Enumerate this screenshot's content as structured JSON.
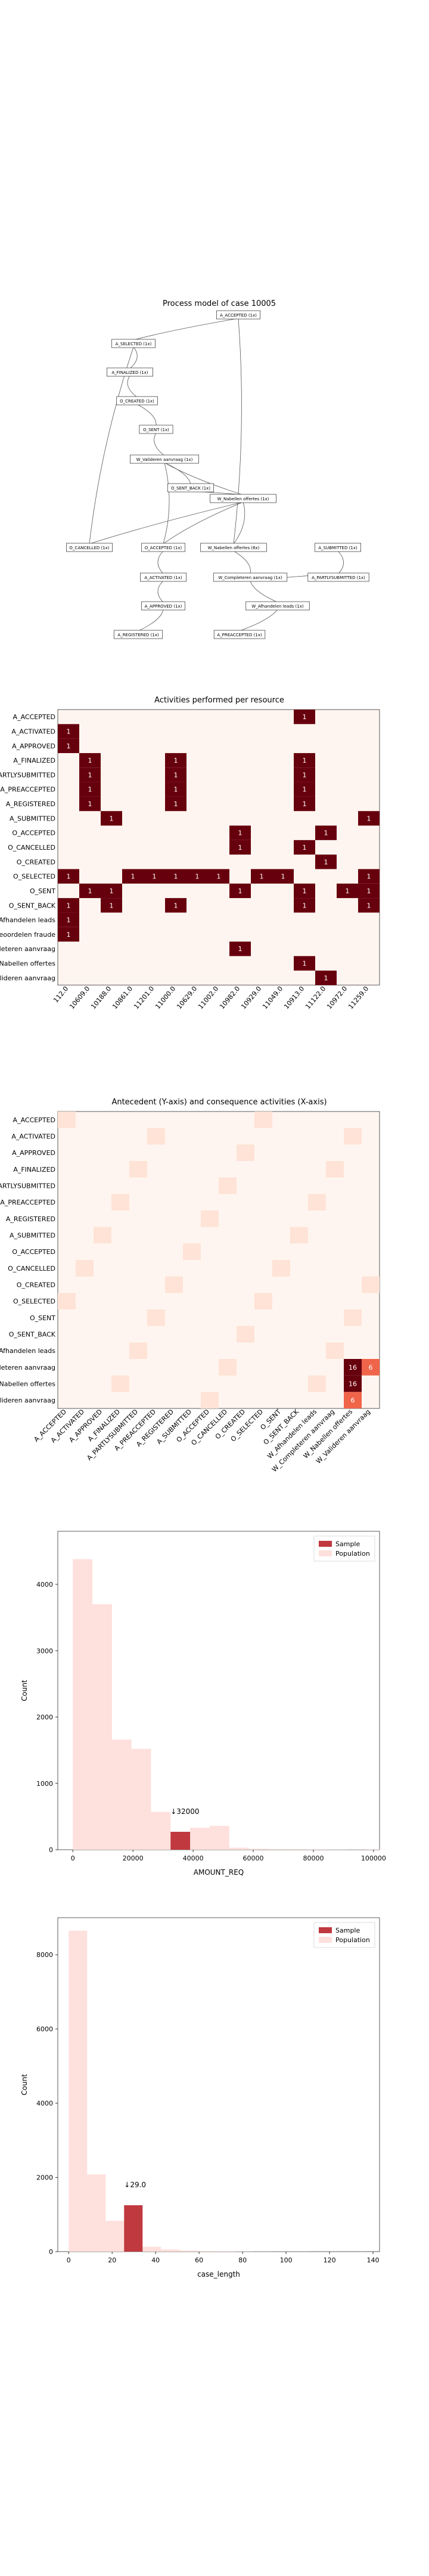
{
  "process_model": {
    "title": "Process model of case 10005",
    "nodes": [
      {
        "id": "n1",
        "label": "A_ACCEPTED (1x)"
      },
      {
        "id": "n2",
        "label": "A_SELECTED (1x)"
      },
      {
        "id": "n3",
        "label": "A_FINALIZED (1x)"
      },
      {
        "id": "n4",
        "label": "O_CREATED (1x)"
      },
      {
        "id": "n5",
        "label": "O_SENT (1x)"
      },
      {
        "id": "n6",
        "label": "W_Valideren aanvraag (1x)"
      },
      {
        "id": "n7",
        "label": "O_SENT_BACK (1x)"
      },
      {
        "id": "n8",
        "label": "W_Nabellen offertes (1x)"
      },
      {
        "id": "n9",
        "label": "O_CANCELLED (1x)"
      },
      {
        "id": "n10",
        "label": "O_ACCEPTED (1x)"
      },
      {
        "id": "n11",
        "label": "W_Nabellen offertes (6x)"
      },
      {
        "id": "n12",
        "label": "A_SUBMITTED (1x)"
      },
      {
        "id": "n13",
        "label": "A_ACTIVATED (1x)"
      },
      {
        "id": "n14",
        "label": "W_Completeren aanvraag (1x)"
      },
      {
        "id": "n15",
        "label": "A_PARTLYSUBMITTED (1x)"
      },
      {
        "id": "n16",
        "label": "A_APPROVED (1x)"
      },
      {
        "id": "n17",
        "label": "W_Afhandelen leads (1x)"
      },
      {
        "id": "n18",
        "label": "A_REGISTERED (1x)"
      },
      {
        "id": "n19",
        "label": "A_PREACCEPTED (1x)"
      }
    ]
  },
  "resource_chart": {
    "title": "Activities performed per resource",
    "rows": [
      "A_ACCEPTED",
      "A_ACTIVATED",
      "A_APPROVED",
      "A_FINALIZED",
      "A_PARTLYSUBMITTED",
      "A_PREACCEPTED",
      "A_REGISTERED",
      "A_SUBMITTED",
      "O_ACCEPTED",
      "O_CANCELLED",
      "O_CREATED",
      "O_SELECTED",
      "O_SENT",
      "O_SENT_BACK",
      "W_Afhandelen leads",
      "W_Beoordelen fraude",
      "W_Completeren aanvraag",
      "W_Nabellen offertes",
      "W_Valideren aanvraag"
    ],
    "columns": [
      "112.0",
      "10609.0",
      "10188.0",
      "10861.0",
      "11201.0",
      "11000.0",
      "10629.0",
      "11002.0",
      "10982.0",
      "10929.0",
      "11049.0",
      "10913.0",
      "11122.0",
      "10972.0",
      "11259.0"
    ],
    "cells": [
      {
        "row": 0,
        "col": 11,
        "value": 1
      },
      {
        "row": 1,
        "col": 0,
        "value": 1
      },
      {
        "row": 2,
        "col": 0,
        "value": 1
      },
      {
        "row": 3,
        "col": 1,
        "value": 1
      },
      {
        "row": 3,
        "col": 5,
        "value": 1
      },
      {
        "row": 3,
        "col": 11,
        "value": 1
      },
      {
        "row": 4,
        "col": 1,
        "value": 1
      },
      {
        "row": 4,
        "col": 5,
        "value": 1
      },
      {
        "row": 4,
        "col": 11,
        "value": 1
      },
      {
        "row": 5,
        "col": 1,
        "value": 1
      },
      {
        "row": 5,
        "col": 5,
        "value": 1
      },
      {
        "row": 5,
        "col": 11,
        "value": 1
      },
      {
        "row": 6,
        "col": 1,
        "value": 1
      },
      {
        "row": 6,
        "col": 5,
        "value": 1
      },
      {
        "row": 6,
        "col": 11,
        "value": 1
      },
      {
        "row": 7,
        "col": 2,
        "value": 1
      },
      {
        "row": 7,
        "col": 14,
        "value": 1
      },
      {
        "row": 8,
        "col": 8,
        "value": 1
      },
      {
        "row": 8,
        "col": 12,
        "value": 1
      },
      {
        "row": 9,
        "col": 8,
        "value": 1
      },
      {
        "row": 9,
        "col": 11,
        "value": 1
      },
      {
        "row": 10,
        "col": 12,
        "value": 1
      },
      {
        "row": 11,
        "col": 0,
        "value": 1
      },
      {
        "row": 11,
        "col": 3,
        "value": 1
      },
      {
        "row": 11,
        "col": 4,
        "value": 1
      },
      {
        "row": 11,
        "col": 5,
        "value": 1
      },
      {
        "row": 11,
        "col": 6,
        "value": 1
      },
      {
        "row": 11,
        "col": 7,
        "value": 1
      },
      {
        "row": 11,
        "col": 9,
        "value": 1
      },
      {
        "row": 11,
        "col": 10,
        "value": 1
      },
      {
        "row": 11,
        "col": 14,
        "value": 1
      },
      {
        "row": 12,
        "col": 1,
        "value": 1
      },
      {
        "row": 12,
        "col": 2,
        "value": 1
      },
      {
        "row": 12,
        "col": 8,
        "value": 1
      },
      {
        "row": 12,
        "col": 11,
        "value": 1
      },
      {
        "row": 12,
        "col": 13,
        "value": 1
      },
      {
        "row": 12,
        "col": 14,
        "value": 1
      },
      {
        "row": 13,
        "col": 0,
        "value": 1
      },
      {
        "row": 13,
        "col": 2,
        "value": 1
      },
      {
        "row": 13,
        "col": 5,
        "value": 1
      },
      {
        "row": 13,
        "col": 11,
        "value": 1
      },
      {
        "row": 13,
        "col": 14,
        "value": 1
      },
      {
        "row": 14,
        "col": 0,
        "value": 1
      },
      {
        "row": 15,
        "col": 0,
        "value": 1
      },
      {
        "row": 16,
        "col": 8,
        "value": 1
      },
      {
        "row": 17,
        "col": 11,
        "value": 1
      },
      {
        "row": 18,
        "col": 12,
        "value": 1
      }
    ]
  },
  "transition_chart": {
    "title": "Antecedent (Y-axis) and consequence activities (X-axis)",
    "labels": [
      "A_ACCEPTED",
      "A_ACTIVATED",
      "A_APPROVED",
      "A_FINALIZED",
      "A_PARTLYSUBMITTED",
      "A_PREACCEPTED",
      "A_REGISTERED",
      "A_SUBMITTED",
      "O_ACCEPTED",
      "O_CANCELLED",
      "O_CREATED",
      "O_SELECTED",
      "O_SENT",
      "O_SENT_BACK",
      "W_Afhandelen leads",
      "W_Completeren aanvraag",
      "W_Nabellen offertes",
      "W_Valideren aanvraag"
    ],
    "shown_values": [
      {
        "row": 15,
        "col": 16,
        "value": 16
      },
      {
        "row": 15,
        "col": 17,
        "value": 6
      },
      {
        "row": 16,
        "col": 16,
        "value": 16
      },
      {
        "row": 17,
        "col": 16,
        "value": 6
      }
    ]
  },
  "chart_data": [
    {
      "type": "heatmap",
      "title": "Activities performed per resource",
      "note": "Dark cells contain the count 1; see resource_chart.cells"
    },
    {
      "type": "heatmap",
      "title": "Antecedent (Y-axis) and consequence activities (X-axis)"
    },
    {
      "type": "bar",
      "xlabel": "AMOUNT_REQ",
      "ylabel": "Count",
      "xlim": [
        -5000,
        102000
      ],
      "ylim": [
        0,
        4800
      ],
      "xticks": [
        "0",
        "20000",
        "40000",
        "60000",
        "80000",
        "100000"
      ],
      "yticks": [
        "0",
        "1000",
        "2000",
        "3000",
        "4000"
      ],
      "legend": [
        "Sample",
        "Population"
      ],
      "legend_position": "top-right",
      "bin_width": 6500,
      "population": [
        {
          "x_start": 0,
          "value": 4380
        },
        {
          "x_start": 6500,
          "value": 3700
        },
        {
          "x_start": 13000,
          "value": 1660
        },
        {
          "x_start": 19500,
          "value": 1520
        },
        {
          "x_start": 26000,
          "value": 570
        },
        {
          "x_start": 32500,
          "value": 250
        },
        {
          "x_start": 39000,
          "value": 330
        },
        {
          "x_start": 45500,
          "value": 360
        },
        {
          "x_start": 52000,
          "value": 30
        },
        {
          "x_start": 58500,
          "value": 15
        },
        {
          "x_start": 65000,
          "value": 10
        },
        {
          "x_start": 71500,
          "value": 8
        },
        {
          "x_start": 78000,
          "value": 5
        },
        {
          "x_start": 84500,
          "value": 4
        },
        {
          "x_start": 91000,
          "value": 3
        },
        {
          "x_start": 97500,
          "value": 5
        }
      ],
      "sample": {
        "x_start": 32500,
        "value": 270
      },
      "annotation": "↓32000"
    },
    {
      "type": "bar",
      "xlabel": "case_length",
      "ylabel": "Count",
      "xlim": [
        -5,
        143
      ],
      "ylim": [
        0,
        9000
      ],
      "xticks": [
        "0",
        "20",
        "40",
        "60",
        "80",
        "100",
        "120",
        "140"
      ],
      "yticks": [
        "0",
        "2000",
        "4000",
        "6000",
        "8000"
      ],
      "legend": [
        "Sample",
        "Population"
      ],
      "legend_position": "top-right",
      "bin_width": 8.5,
      "population": [
        {
          "x_start": 0,
          "value": 8650
        },
        {
          "x_start": 8.5,
          "value": 2080
        },
        {
          "x_start": 17,
          "value": 830
        },
        {
          "x_start": 25.5,
          "value": 1250
        },
        {
          "x_start": 34,
          "value": 130
        },
        {
          "x_start": 42.5,
          "value": 60
        },
        {
          "x_start": 51,
          "value": 30
        },
        {
          "x_start": 59.5,
          "value": 15
        },
        {
          "x_start": 68,
          "value": 10
        },
        {
          "x_start": 76.5,
          "value": 5
        },
        {
          "x_start": 85,
          "value": 3
        },
        {
          "x_start": 93.5,
          "value": 2
        },
        {
          "x_start": 102,
          "value": 2
        },
        {
          "x_start": 110.5,
          "value": 1
        },
        {
          "x_start": 119,
          "value": 1
        },
        {
          "x_start": 127.5,
          "value": 1
        }
      ],
      "sample": {
        "x_start": 25.5,
        "value": 1250
      },
      "annotation": "↓29.0"
    }
  ]
}
